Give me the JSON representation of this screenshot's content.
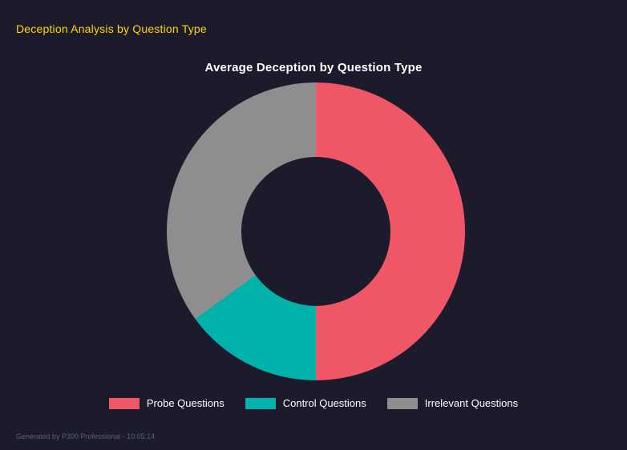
{
  "page": {
    "title": "Deception Analysis by Question Type",
    "footer": "Generated by P300 Professional - 10:05:14"
  },
  "colors": {
    "background": "#1b1b2c",
    "page_title": "#ffd700",
    "chart_title": "#ffffff",
    "legend_text": "#ffffff"
  },
  "chart_data": {
    "type": "pie",
    "variant": "donut",
    "title": "Average Deception by Question Type",
    "categories": [
      "Probe Questions",
      "Control Questions",
      "Irrelevant Questions"
    ],
    "values": [
      50,
      15,
      35
    ],
    "unit": "percent_of_whole",
    "colors": [
      "#ef5666",
      "#00b2a9",
      "#8e8e8e"
    ],
    "start_angle_deg": 0,
    "clockwise": true,
    "inner_radius_ratio": 0.5,
    "legend_position": "bottom",
    "legend": [
      {
        "label": "Probe Questions",
        "color": "#ef5666"
      },
      {
        "label": "Control Questions",
        "color": "#00b2a9"
      },
      {
        "label": "Irrelevant Questions",
        "color": "#8e8e8e"
      }
    ]
  }
}
